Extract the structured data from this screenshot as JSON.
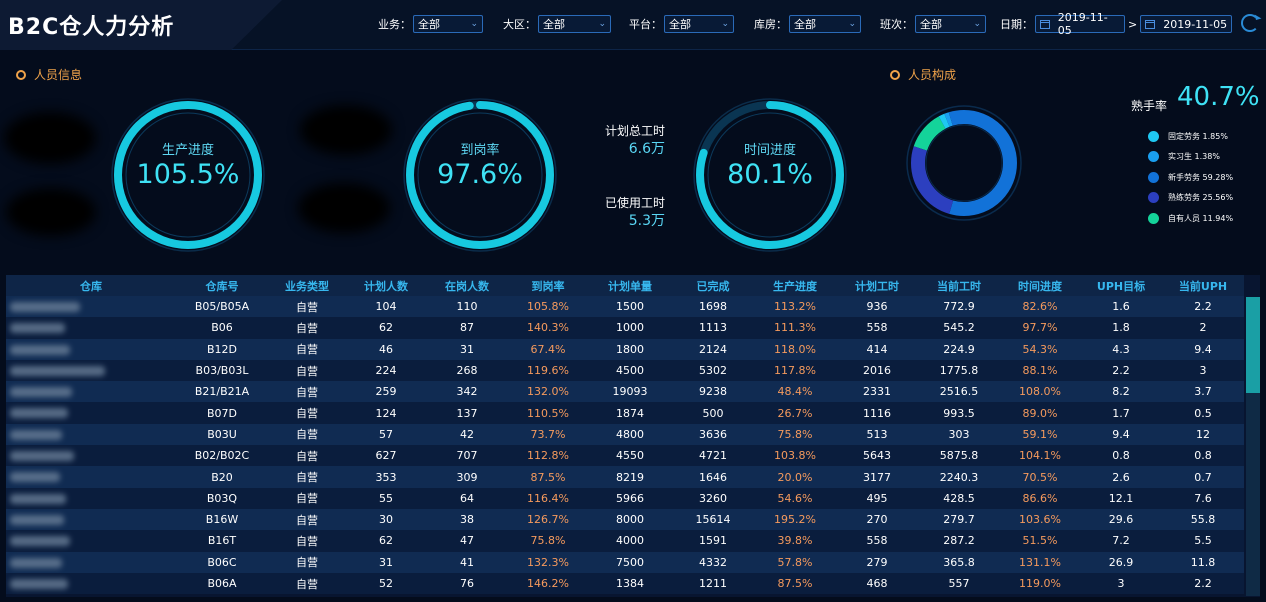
{
  "app": {
    "title": "B2C仓人力分析"
  },
  "filters": [
    {
      "label": "业务：",
      "value": "全部"
    },
    {
      "label": "大区：",
      "value": "全部"
    },
    {
      "label": "平台：",
      "value": "全部"
    },
    {
      "label": "库房：",
      "value": "全部"
    },
    {
      "label": "班次：",
      "value": "全部"
    }
  ],
  "date": {
    "label": "日期：",
    "start": "2019-11-05",
    "sep": ">",
    "end": "2019-11-05"
  },
  "personnel_info": {
    "title": "人员信息"
  },
  "personnel_comp": {
    "title": "人员构成"
  },
  "gauges": [
    {
      "label": "生产进度",
      "value": "105.5%",
      "fill": 1.0
    },
    {
      "label": "到岗率",
      "value": "97.6%",
      "fill": 0.976
    },
    {
      "label": "时间进度",
      "value": "80.1%",
      "fill": 0.801
    }
  ],
  "hours": {
    "planned_label": "计划总工时",
    "planned_value": "6.6万",
    "used_label": "已使用工时",
    "used_value": "5.3万"
  },
  "skilled": {
    "label": "熟手率",
    "value": "40.7%"
  },
  "composition": [
    {
      "name": "固定劳务",
      "pct": "1.85%",
      "value": 1.85,
      "color": "#1fc8f2"
    },
    {
      "name": "实习生",
      "pct": "1.38%",
      "value": 1.38,
      "color": "#1a9ff0"
    },
    {
      "name": "新手劳务",
      "pct": "59.28%",
      "value": 59.28,
      "color": "#1272d8"
    },
    {
      "name": "熟练劳务",
      "pct": "25.56%",
      "value": 25.56,
      "color": "#2c3fbf"
    },
    {
      "name": "自有人员",
      "pct": "11.94%",
      "value": 11.94,
      "color": "#14d39a"
    }
  ],
  "table": {
    "headers": [
      "仓库",
      "仓库号",
      "业务类型",
      "计划人数",
      "在岗人数",
      "到岗率",
      "计划单量",
      "已完成",
      "生产进度",
      "计划工时",
      "当前工时",
      "时间进度",
      "UPH目标",
      "当前UPH"
    ],
    "rows": [
      [
        "",
        "B05/B05A",
        "自营",
        "104",
        "110",
        "105.8%",
        "1500",
        "1698",
        "113.2%",
        "936",
        "772.9",
        "82.6%",
        "1.6",
        "2.2"
      ],
      [
        "",
        "B06",
        "自营",
        "62",
        "87",
        "140.3%",
        "1000",
        "1113",
        "111.3%",
        "558",
        "545.2",
        "97.7%",
        "1.8",
        "2"
      ],
      [
        "",
        "B12D",
        "自营",
        "46",
        "31",
        "67.4%",
        "1800",
        "2124",
        "118.0%",
        "414",
        "224.9",
        "54.3%",
        "4.3",
        "9.4"
      ],
      [
        "",
        "B03/B03L",
        "自营",
        "224",
        "268",
        "119.6%",
        "4500",
        "5302",
        "117.8%",
        "2016",
        "1775.8",
        "88.1%",
        "2.2",
        "3"
      ],
      [
        "",
        "B21/B21A",
        "自营",
        "259",
        "342",
        "132.0%",
        "19093",
        "9238",
        "48.4%",
        "2331",
        "2516.5",
        "108.0%",
        "8.2",
        "3.7"
      ],
      [
        "",
        "B07D",
        "自营",
        "124",
        "137",
        "110.5%",
        "1874",
        "500",
        "26.7%",
        "1116",
        "993.5",
        "89.0%",
        "1.7",
        "0.5"
      ],
      [
        "",
        "B03U",
        "自营",
        "57",
        "42",
        "73.7%",
        "4800",
        "3636",
        "75.8%",
        "513",
        "303",
        "59.1%",
        "9.4",
        "12"
      ],
      [
        "",
        "B02/B02C",
        "自营",
        "627",
        "707",
        "112.8%",
        "4550",
        "4721",
        "103.8%",
        "5643",
        "5875.8",
        "104.1%",
        "0.8",
        "0.8"
      ],
      [
        "",
        "B20",
        "自营",
        "353",
        "309",
        "87.5%",
        "8219",
        "1646",
        "20.0%",
        "3177",
        "2240.3",
        "70.5%",
        "2.6",
        "0.7"
      ],
      [
        "",
        "B03Q",
        "自营",
        "55",
        "64",
        "116.4%",
        "5966",
        "3260",
        "54.6%",
        "495",
        "428.5",
        "86.6%",
        "12.1",
        "7.6"
      ],
      [
        "",
        "B16W",
        "自营",
        "30",
        "38",
        "126.7%",
        "8000",
        "15614",
        "195.2%",
        "270",
        "279.7",
        "103.6%",
        "29.6",
        "55.8"
      ],
      [
        "",
        "B16T",
        "自营",
        "62",
        "47",
        "75.8%",
        "4000",
        "1591",
        "39.8%",
        "558",
        "287.2",
        "51.5%",
        "7.2",
        "5.5"
      ],
      [
        "",
        "B06C",
        "自营",
        "31",
        "41",
        "132.3%",
        "7500",
        "4332",
        "57.8%",
        "279",
        "365.8",
        "131.1%",
        "26.9",
        "11.8"
      ],
      [
        "",
        "B06A",
        "自营",
        "52",
        "76",
        "146.2%",
        "1384",
        "1211",
        "87.5%",
        "468",
        "557",
        "119.0%",
        "3",
        "2.2"
      ]
    ]
  },
  "colors": {
    "accent": "#3fe2f5",
    "header_text": "#37b7ee",
    "warm": "#f59a5d",
    "section": "#f0a34a"
  }
}
